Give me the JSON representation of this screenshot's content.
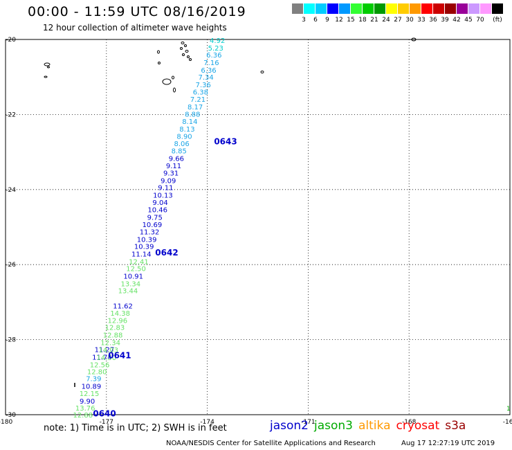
{
  "header": {
    "title": "00:00 - 11:59 UTC 08/16/2019",
    "subtitle": "12 hour collection of altimeter wave heights"
  },
  "legend": {
    "unit": "(ft)",
    "colors": [
      "#808080",
      "#00ffff",
      "#00ccff",
      "#0000ff",
      "#0099ff",
      "#33ff33",
      "#00cc00",
      "#009900",
      "#ffff00",
      "#ffcc00",
      "#ff9900",
      "#ff0000",
      "#cc0000",
      "#990000",
      "#990099",
      "#cc99ff",
      "#ff99ff",
      "#000000"
    ],
    "labels": [
      "3",
      "6",
      "9",
      "12",
      "15",
      "18",
      "21",
      "24",
      "27",
      "30",
      "33",
      "36",
      "39",
      "42",
      "45",
      "70"
    ]
  },
  "map": {
    "lon_ticks": [
      "-180",
      "-177",
      "-174",
      "-171",
      "-168",
      "-165"
    ],
    "lat_ticks": [
      "-20",
      "-22",
      "-24",
      "-26",
      "-28",
      "-30"
    ],
    "edge_label": "1"
  },
  "chart_data": {
    "type": "scatter",
    "title": "00:00 - 11:59 UTC 08/16/2019",
    "subtitle": "12 hour collection of altimeter wave heights",
    "xlabel": "",
    "ylabel": "",
    "xlim": [
      -180,
      -165
    ],
    "ylim": [
      -30,
      -20
    ],
    "grid": true,
    "passes": [
      "0643",
      "0642",
      "0641",
      "0640"
    ],
    "pass_points": [
      {
        "x": -173.8,
        "y": -22.72
      },
      {
        "x": -175.55,
        "y": -25.68
      },
      {
        "x": -176.95,
        "y": -28.42
      },
      {
        "x": -177.4,
        "y": -29.97
      }
    ],
    "series": [
      {
        "name": "jason2",
        "points": [
          {
            "x": -173.7,
            "y": -20.02,
            "v": "4.92"
          },
          {
            "x": -173.75,
            "y": -20.22,
            "v": "5.23"
          },
          {
            "x": -173.8,
            "y": -20.41,
            "v": "6.36"
          },
          {
            "x": -173.88,
            "y": -20.61,
            "v": "7.16"
          },
          {
            "x": -173.96,
            "y": -20.81,
            "v": "6.36"
          },
          {
            "x": -174.04,
            "y": -21.0,
            "v": "7.34"
          },
          {
            "x": -174.12,
            "y": -21.2,
            "v": "7.36"
          },
          {
            "x": -174.2,
            "y": -21.39,
            "v": "6.38"
          },
          {
            "x": -174.28,
            "y": -21.59,
            "v": "7.21"
          },
          {
            "x": -174.36,
            "y": -21.79,
            "v": "8.17"
          },
          {
            "x": -174.44,
            "y": -21.98,
            "v": "8.88"
          },
          {
            "x": -174.52,
            "y": -22.18,
            "v": "8.14"
          },
          {
            "x": -174.6,
            "y": -22.38,
            "v": "8.13"
          },
          {
            "x": -174.68,
            "y": -22.57,
            "v": "8.90"
          },
          {
            "x": -174.76,
            "y": -22.77,
            "v": "8.06"
          },
          {
            "x": -174.84,
            "y": -22.96,
            "v": "8.85"
          },
          {
            "x": -174.92,
            "y": -23.16,
            "v": "9.66"
          },
          {
            "x": -175.0,
            "y": -23.36,
            "v": "9.11"
          },
          {
            "x": -175.08,
            "y": -23.55,
            "v": "9.31"
          },
          {
            "x": -175.16,
            "y": -23.75,
            "v": "9.09"
          },
          {
            "x": -175.24,
            "y": -23.94,
            "v": "9.11"
          },
          {
            "x": -175.32,
            "y": -24.14,
            "v": "10.13"
          },
          {
            "x": -175.4,
            "y": -24.34,
            "v": "9.04"
          },
          {
            "x": -175.48,
            "y": -24.53,
            "v": "10.46"
          },
          {
            "x": -175.56,
            "y": -24.73,
            "v": "9.75"
          },
          {
            "x": -175.64,
            "y": -24.93,
            "v": "10.69"
          },
          {
            "x": -175.72,
            "y": -25.12,
            "v": "11.32"
          },
          {
            "x": -175.8,
            "y": -25.32,
            "v": "10.39"
          },
          {
            "x": -175.88,
            "y": -25.51,
            "v": "10.39"
          },
          {
            "x": -175.96,
            "y": -25.71,
            "v": "11.14"
          },
          {
            "x": -176.2,
            "y": -26.3,
            "v": "10.91"
          },
          {
            "x": -176.51,
            "y": -27.09,
            "v": "11.62"
          },
          {
            "x": -177.06,
            "y": -28.26,
            "v": "11.27"
          },
          {
            "x": -177.13,
            "y": -28.46,
            "v": "11.74"
          },
          {
            "x": -177.38,
            "y": -29.03,
            "v": "7.39"
          },
          {
            "x": -177.45,
            "y": -29.23,
            "v": "10.89"
          },
          {
            "x": -177.57,
            "y": -29.63,
            "v": "9.90"
          }
        ]
      },
      {
        "name": "jason3",
        "points": [
          {
            "x": -176.04,
            "y": -25.91,
            "v": "12.41"
          },
          {
            "x": -176.12,
            "y": -26.1,
            "v": "12.50"
          },
          {
            "x": -176.28,
            "y": -26.5,
            "v": "13.34"
          },
          {
            "x": -176.36,
            "y": -26.69,
            "v": "13.44"
          },
          {
            "x": -176.59,
            "y": -27.29,
            "v": "14.38"
          },
          {
            "x": -176.67,
            "y": -27.48,
            "v": "12.96"
          },
          {
            "x": -176.75,
            "y": -27.67,
            "v": "12.83"
          },
          {
            "x": -176.81,
            "y": -27.87,
            "v": "12.88"
          },
          {
            "x": -176.88,
            "y": -28.07,
            "v": "12.34"
          },
          {
            "x": -176.94,
            "y": -28.27,
            "v": "14.03"
          },
          {
            "x": -177.0,
            "y": -28.47,
            "v": "14.50"
          },
          {
            "x": -177.2,
            "y": -28.66,
            "v": "12.56"
          },
          {
            "x": -177.28,
            "y": -28.85,
            "v": "12.80"
          },
          {
            "x": -177.51,
            "y": -29.43,
            "v": "12.15"
          },
          {
            "x": -177.63,
            "y": -29.82,
            "v": "13.76"
          },
          {
            "x": -177.7,
            "y": -30.0,
            "v": "12.88"
          }
        ]
      }
    ]
  },
  "satellites": [
    {
      "name": "jason2",
      "color": "#0000cc"
    },
    {
      "name": "jason3",
      "color": "#00aa00"
    },
    {
      "name": "altika",
      "color": "#ff9900"
    },
    {
      "name": "cryosat",
      "color": "#ff0000"
    },
    {
      "name": "s3a",
      "color": "#990000"
    }
  ],
  "footer": {
    "note": "note: 1) Time is in UTC; 2) SWH is in feet",
    "source": "NOAA/NESDIS Center for Satellite Applications and Research",
    "timestamp": "Aug 17 12:27:19 UTC 2019"
  }
}
